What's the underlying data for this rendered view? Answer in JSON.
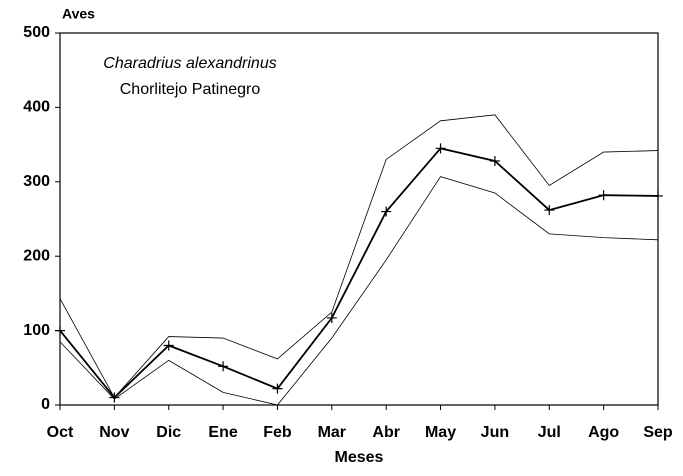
{
  "chart_data": {
    "type": "line",
    "y_label": "Aves",
    "x_label": "Meses",
    "annotations": [
      "Charadrius alexandrinus",
      "Chorlitejo Patinegro"
    ],
    "categories": [
      "Oct",
      "Nov",
      "Dic",
      "Ene",
      "Feb",
      "Mar",
      "Abr",
      "May",
      "Jun",
      "Jul",
      "Ago",
      "Sep"
    ],
    "series": [
      {
        "color": "#000000",
        "width": 1.8,
        "markers": true,
        "values": [
          100,
          10,
          80,
          52,
          22,
          117,
          260,
          345,
          328,
          262,
          282,
          281
        ]
      },
      {
        "color": "#000000",
        "width": 0.8,
        "markers": false,
        "values": [
          143,
          10,
          92,
          90,
          62,
          125,
          330,
          382,
          390,
          295,
          340,
          342
        ]
      },
      {
        "color": "#000000",
        "width": 0.8,
        "markers": false,
        "values": [
          85,
          8,
          60,
          17,
          0,
          90,
          195,
          307,
          285,
          230,
          225,
          222
        ]
      }
    ],
    "ylim": [
      0,
      500
    ],
    "yticks": [
      0,
      100,
      200,
      300,
      400,
      500
    ],
    "grid": false
  }
}
